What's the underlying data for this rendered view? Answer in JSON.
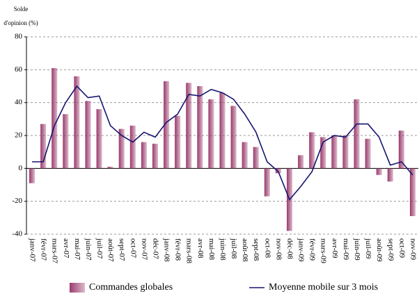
{
  "chart_data": {
    "type": "bar_line",
    "y_label": [
      "Solde",
      "d'opinion (%)"
    ],
    "categories": [
      "janv-07",
      "févr-07",
      "mars-07",
      "avr-07",
      "mai-07",
      "juin-07",
      "juil-07",
      "août-07",
      "sept-07",
      "oct-07",
      "nov-07",
      "déc-07",
      "janv-08",
      "févr-08",
      "mars-08",
      "avr-08",
      "mai-08",
      "juin-08",
      "juil-08",
      "août-08",
      "sept-08",
      "oct-08",
      "nov-08",
      "déc-08",
      "janv-09",
      "févr-09",
      "mars-09",
      "avr-09",
      "mai-09",
      "juin-09",
      "juil-09",
      "août-09",
      "sept-09",
      "oct-09",
      "nov-09"
    ],
    "series": [
      {
        "name": "Commandes globales",
        "type": "bar",
        "color": "#9a3a6c",
        "values": [
          -9,
          27,
          61,
          33,
          56,
          41,
          36,
          1,
          24,
          26,
          16,
          15,
          53,
          32,
          52,
          50,
          42,
          46,
          38,
          16,
          13,
          -17,
          -3,
          -38,
          8,
          22,
          19,
          20,
          20,
          42,
          18,
          -4,
          -8,
          23,
          -29
        ]
      },
      {
        "name": "Moyenne mobile sur 3 mois",
        "type": "line",
        "color": "#141470",
        "values": [
          4,
          4,
          26,
          40,
          50,
          43,
          44,
          26,
          20,
          16,
          22,
          19,
          28,
          33,
          45,
          44,
          48,
          46,
          42,
          33,
          22,
          4,
          -2,
          -19,
          -11,
          -2,
          16,
          20,
          19,
          27,
          27,
          19,
          2,
          4,
          -4
        ]
      }
    ],
    "ylim": [
      -40,
      80
    ],
    "yticks": [
      -40,
      -20,
      0,
      20,
      40,
      60,
      80
    ],
    "grid": true
  }
}
